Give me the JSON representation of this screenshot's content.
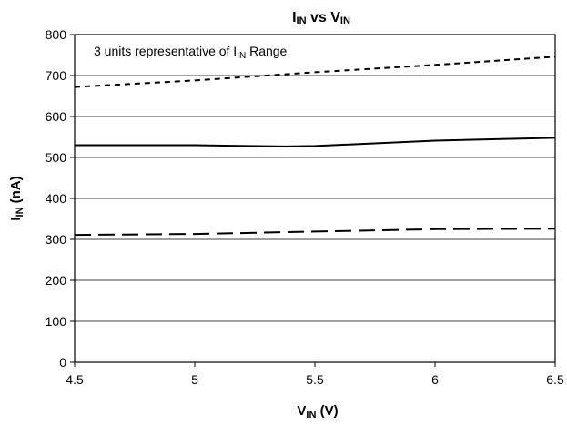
{
  "chart_data": {
    "type": "line",
    "title": "IIN vs VIN",
    "title_main": "I",
    "title_sub": "IN",
    "title_mid": " vs V",
    "title_sub2": "IN",
    "xlabel_main": "V",
    "xlabel_sub": "IN",
    "xlabel_rest": " (V)",
    "ylabel_main": "I",
    "ylabel_sub": "IN",
    "ylabel_rest": " (nA)",
    "annotation_pre": "3 units representative of I",
    "annotation_sub": "IN",
    "annotation_post": " Range",
    "xlim": [
      4.5,
      6.5
    ],
    "ylim": [
      0,
      800
    ],
    "x_ticks": [
      "4.5",
      "5",
      "5.5",
      "6",
      "6.5"
    ],
    "y_ticks": [
      "0",
      "100",
      "200",
      "300",
      "400",
      "500",
      "600",
      "700",
      "800"
    ],
    "grid": "horizontal",
    "series": [
      {
        "style": "short-dash",
        "x": [
          4.5,
          5.0,
          5.5,
          6.0,
          6.5
        ],
        "y": [
          672,
          688,
          708,
          726,
          746
        ]
      },
      {
        "style": "solid",
        "x": [
          4.5,
          5.0,
          5.375,
          5.5,
          6.0,
          6.5
        ],
        "y": [
          530,
          530,
          527,
          528,
          541,
          548
        ]
      },
      {
        "style": "long-dash",
        "x": [
          4.5,
          5.0,
          5.5,
          6.0,
          6.5
        ],
        "y": [
          311,
          313,
          319,
          325,
          326
        ]
      }
    ]
  }
}
